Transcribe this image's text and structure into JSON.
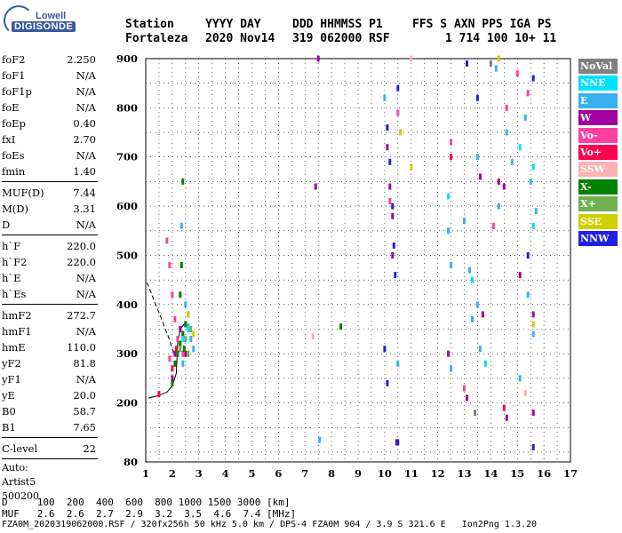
{
  "logo": {
    "top": "Lowell",
    "bottom": "DIGISONDE"
  },
  "header": {
    "labels": [
      {
        "t": "Station",
        "x": 141
      },
      {
        "t": "YYYY DAY",
        "x": 231
      },
      {
        "t": "DDD HHMMSS P1",
        "x": 329
      },
      {
        "t": "FFS S AXN PPS IGA PS",
        "x": 464
      }
    ],
    "values": [
      {
        "t": "Fortaleza",
        "x": 141
      },
      {
        "t": "2020 Nov14",
        "x": 231
      },
      {
        "t": "319 062000 RSF",
        "x": 329
      },
      {
        "t": "1 714 100 10+ 11",
        "x": 501
      }
    ]
  },
  "params": [
    {
      "label": "foF2",
      "value": "2.250"
    },
    {
      "label": "foF1",
      "value": "N/A"
    },
    {
      "label": "foF1p",
      "value": "N/A"
    },
    {
      "label": "foE",
      "value": "N/A"
    },
    {
      "label": "foEp",
      "value": "0.40"
    },
    {
      "label": "fxI",
      "value": "2.70"
    },
    {
      "label": "foEs",
      "value": "N/A"
    },
    {
      "label": "fmin",
      "value": "1.40"
    },
    {
      "sep": true
    },
    {
      "label": "MUF(D)",
      "value": "7.44"
    },
    {
      "label": "M(D)",
      "value": "3.31"
    },
    {
      "label": "D",
      "value": "N/A"
    },
    {
      "sep": true
    },
    {
      "label": "h`F",
      "value": "220.0"
    },
    {
      "label": "h`F2",
      "value": "220.0"
    },
    {
      "label": "h`E",
      "value": "N/A"
    },
    {
      "label": "h`Es",
      "value": "N/A"
    },
    {
      "sep": true
    },
    {
      "label": "hmF2",
      "value": "272.7"
    },
    {
      "label": "hmF1",
      "value": "N/A"
    },
    {
      "label": "hmE",
      "value": "110.0"
    },
    {
      "label": "yF2",
      "value": "81.8"
    },
    {
      "label": "yF1",
      "value": "N/A"
    },
    {
      "label": "yE",
      "value": "20.0"
    },
    {
      "label": "B0",
      "value": "58.7"
    },
    {
      "label": "B1",
      "value": "7.65"
    },
    {
      "sep": true
    },
    {
      "label": "C-level",
      "value": "22"
    },
    {
      "sep": true
    }
  ],
  "auto_lines": [
    "Auto:",
    "Artist5",
    "500200"
  ],
  "legend": [
    {
      "label": "NoVal",
      "color": "#808080"
    },
    {
      "label": "NNE",
      "color": "#00e0ff"
    },
    {
      "label": "E",
      "color": "#3ab0f0"
    },
    {
      "label": "W",
      "color": "#a000a0"
    },
    {
      "label": "Vo-",
      "color": "#ff40a0"
    },
    {
      "label": "Vo+",
      "color": "#ff0050"
    },
    {
      "label": "SSW",
      "color": "#ffb0b0"
    },
    {
      "label": "X-",
      "color": "#008000"
    },
    {
      "label": "X+",
      "color": "#70b050"
    },
    {
      "label": "SSE",
      "color": "#d0d000"
    },
    {
      "label": "NNW",
      "color": "#2020e0"
    }
  ],
  "bottom_table": {
    "row1": "D     100  200  400  600  800 1000 1500 3000 [km]",
    "row2": "MUF   2.6  2.6  2.7  2.9  3.2  3.5  4.6  7.4 [MHz]"
  },
  "footer": "FZA0M_2020319062000.RSF / 320fx256h 50 kHz 5.0 km / DPS-4 FZA0M 904 / 3.9 S 321.6 E   Ion2Png 1.3.20",
  "chart_data": {
    "type": "scatter",
    "title": "",
    "xlabel": "",
    "ylabel": "",
    "xlim": [
      1,
      17
    ],
    "ylim": [
      80,
      900
    ],
    "x_ticks": [
      1,
      2,
      3,
      4,
      5,
      6,
      7,
      8,
      9,
      10,
      11,
      12,
      13,
      14,
      15,
      16,
      17
    ],
    "y_ticks": [
      80,
      200,
      300,
      400,
      500,
      600,
      700,
      800,
      900
    ],
    "grid": true,
    "solid_trace": [
      [
        1.1,
        210
      ],
      [
        1.5,
        215
      ],
      [
        1.8,
        222
      ],
      [
        2.0,
        235
      ],
      [
        2.15,
        260
      ],
      [
        2.2,
        320
      ],
      [
        2.3,
        350
      ],
      [
        2.45,
        360
      ]
    ],
    "dashed_trace": [
      [
        1.05,
        445
      ],
      [
        1.3,
        410
      ],
      [
        1.6,
        370
      ],
      [
        1.85,
        335
      ],
      [
        2.0,
        310
      ],
      [
        2.1,
        295
      ]
    ],
    "series": [
      {
        "name": "E",
        "color": "#3ab0f0",
        "points": [
          [
            2.2,
            300
          ],
          [
            2.3,
            320
          ],
          [
            2.4,
            340
          ],
          [
            2.5,
            360
          ],
          [
            2.6,
            380
          ],
          [
            2.5,
            400
          ],
          [
            2.7,
            330
          ],
          [
            2.8,
            310
          ],
          [
            2.4,
            280
          ],
          [
            2.6,
            355
          ],
          [
            2.35,
            560
          ],
          [
            10.0,
            820
          ],
          [
            10.5,
            280
          ],
          [
            12.4,
            550
          ],
          [
            12.5,
            480
          ],
          [
            12.5,
            270
          ],
          [
            13.3,
            370
          ],
          [
            13.5,
            400
          ],
          [
            13.0,
            570
          ],
          [
            13.2,
            470
          ],
          [
            13.6,
            310
          ],
          [
            14.2,
            880
          ],
          [
            14.3,
            600
          ],
          [
            14.8,
            690
          ],
          [
            15.1,
            250
          ],
          [
            15.3,
            780
          ],
          [
            15.5,
            650
          ],
          [
            15.6,
            340
          ],
          [
            15.7,
            590
          ],
          [
            7.55,
            125
          ],
          [
            13.5,
            700
          ],
          [
            14.6,
            750
          ],
          [
            15.4,
            420
          ]
        ]
      },
      {
        "name": "W",
        "color": "#a000a0",
        "points": [
          [
            2.0,
            250
          ],
          [
            2.1,
            300
          ],
          [
            2.3,
            350
          ],
          [
            2.5,
            300
          ],
          [
            7.4,
            640
          ],
          [
            7.5,
            900
          ],
          [
            10.1,
            720
          ],
          [
            10.2,
            640
          ],
          [
            10.3,
            580
          ],
          [
            10.3,
            500
          ],
          [
            13.1,
            210
          ],
          [
            13.6,
            660
          ],
          [
            13.7,
            380
          ],
          [
            14.3,
            650
          ],
          [
            14.5,
            640
          ],
          [
            14.6,
            170
          ],
          [
            15.1,
            460
          ],
          [
            15.6,
            380
          ],
          [
            15.6,
            180
          ],
          [
            12.4,
            300
          ],
          [
            10.45,
            120
          ]
        ]
      },
      {
        "name": "Vo-",
        "color": "#ff40a0",
        "points": [
          [
            1.8,
            530
          ],
          [
            1.9,
            480
          ],
          [
            2.0,
            420
          ],
          [
            2.1,
            370
          ],
          [
            1.9,
            290
          ],
          [
            2.2,
            330
          ],
          [
            2.4,
            300
          ],
          [
            10.2,
            610
          ],
          [
            10.5,
            790
          ],
          [
            12.5,
            730
          ],
          [
            13.0,
            230
          ],
          [
            14.1,
            560
          ],
          [
            14.6,
            800
          ],
          [
            15.0,
            870
          ],
          [
            15.4,
            830
          ]
        ]
      },
      {
        "name": "Vo+",
        "color": "#ff0050",
        "points": [
          [
            1.5,
            218
          ],
          [
            2.0,
            270
          ],
          [
            2.15,
            310
          ],
          [
            12.5,
            700
          ],
          [
            14.5,
            190
          ]
        ]
      },
      {
        "name": "NNW",
        "color": "#2020e0",
        "points": [
          [
            10.1,
            760
          ],
          [
            10.2,
            690
          ],
          [
            10.3,
            600
          ],
          [
            10.35,
            520
          ],
          [
            10.4,
            460
          ],
          [
            10.0,
            310
          ],
          [
            10.1,
            240
          ],
          [
            10.5,
            840
          ],
          [
            10.5,
            120
          ],
          [
            13.1,
            890
          ],
          [
            13.5,
            820
          ],
          [
            15.6,
            860
          ],
          [
            15.6,
            110
          ],
          [
            15.4,
            500
          ]
        ]
      },
      {
        "name": "X-",
        "color": "#008000",
        "points": [
          [
            2.0,
            240
          ],
          [
            2.1,
            280
          ],
          [
            2.2,
            300
          ],
          [
            2.3,
            320
          ],
          [
            2.4,
            340
          ],
          [
            2.5,
            360
          ],
          [
            2.35,
            480
          ],
          [
            2.4,
            650
          ],
          [
            2.3,
            420
          ],
          [
            2.45,
            310
          ],
          [
            8.35,
            355
          ]
        ]
      },
      {
        "name": "X+",
        "color": "#70b050",
        "points": [
          [
            2.3,
            310
          ],
          [
            2.5,
            330
          ],
          [
            2.7,
            350
          ],
          [
            2.6,
            300
          ]
        ]
      },
      {
        "name": "SSE",
        "color": "#d0d000",
        "points": [
          [
            2.6,
            380
          ],
          [
            2.8,
            340
          ],
          [
            11.0,
            680
          ],
          [
            10.6,
            750
          ],
          [
            14.3,
            900
          ],
          [
            15.6,
            360
          ]
        ]
      },
      {
        "name": "NNE",
        "color": "#00e0ff",
        "points": [
          [
            2.4,
            330
          ],
          [
            2.6,
            350
          ],
          [
            12.4,
            620
          ],
          [
            13.3,
            450
          ],
          [
            13.8,
            280
          ],
          [
            15.1,
            720
          ],
          [
            15.6,
            560
          ],
          [
            15.6,
            680
          ]
        ]
      },
      {
        "name": "SSW",
        "color": "#ffb0b0",
        "points": [
          [
            7.3,
            335
          ],
          [
            15.3,
            220
          ],
          [
            11.0,
            900
          ]
        ]
      },
      {
        "name": "NoVal",
        "color": "#808080",
        "points": [
          [
            13.4,
            180
          ],
          [
            14.0,
            890
          ]
        ]
      }
    ]
  }
}
